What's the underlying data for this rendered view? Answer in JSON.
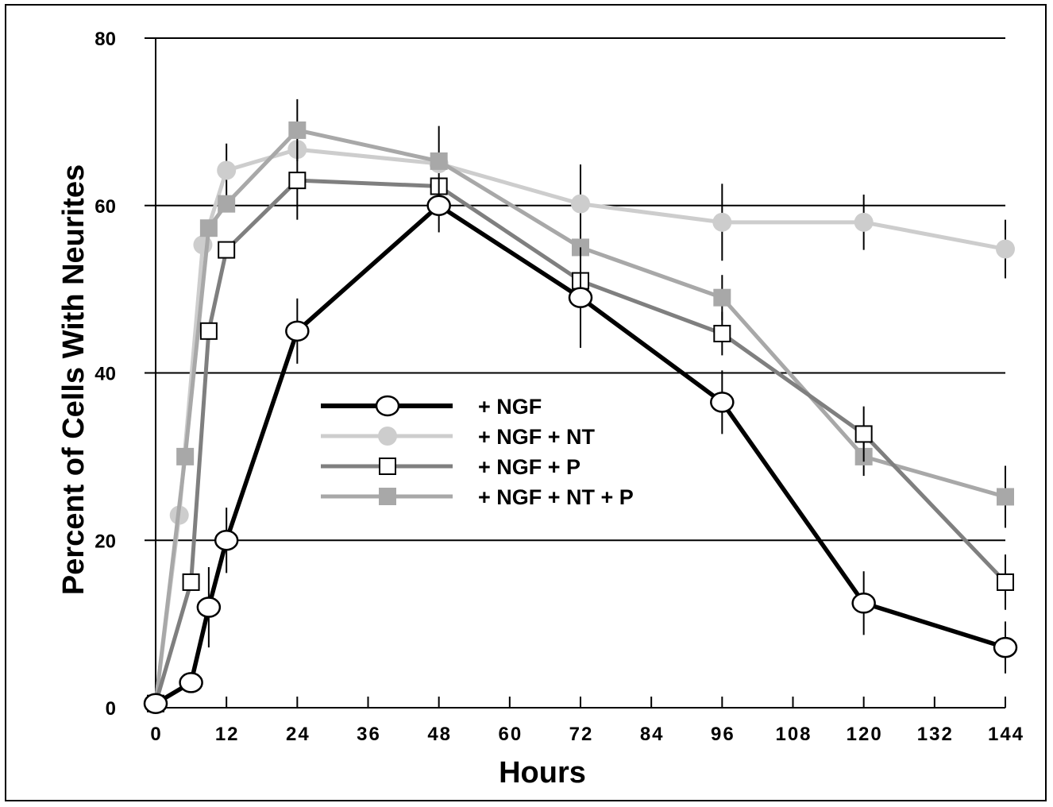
{
  "chart_data": {
    "type": "line",
    "xlabel": "Hours",
    "ylabel": "Percent of Cells With Neurites",
    "xlim": [
      0,
      144
    ],
    "ylim": [
      0,
      80
    ],
    "xticks": [
      "0",
      "12",
      "24",
      "36",
      "48",
      "60",
      "72",
      "84",
      "96",
      "108",
      "120",
      "132",
      "144"
    ],
    "yticks": [
      "0",
      "20",
      "40",
      "60",
      "80"
    ],
    "grid": "horizontal",
    "legend_position": "center",
    "series": [
      {
        "name": "+ NGF",
        "color": "#000000",
        "marker": "open-circle",
        "points": [
          {
            "x": 0,
            "y": 0.5
          },
          {
            "x": 6,
            "y": 3
          },
          {
            "x": 9,
            "y": 12,
            "err": 4.8
          },
          {
            "x": 12,
            "y": 20,
            "err": 3.9
          },
          {
            "x": 24,
            "y": 45,
            "err": 3.9
          },
          {
            "x": 48,
            "y": 60,
            "err": 3.2
          },
          {
            "x": 72,
            "y": 49,
            "err": 6
          },
          {
            "x": 96,
            "y": 36.5,
            "err": 3.8
          },
          {
            "x": 120,
            "y": 12.5,
            "err": 3.8
          },
          {
            "x": 144,
            "y": 7.2,
            "err": 3.1
          }
        ]
      },
      {
        "name": "+ NGF + NT",
        "color": "#cdcdcd",
        "marker": "filled-circle",
        "points": [
          {
            "x": 0,
            "y": 0.5
          },
          {
            "x": 4,
            "y": 23
          },
          {
            "x": 8,
            "y": 55.3
          },
          {
            "x": 12,
            "y": 64.2,
            "err": 3.2
          },
          {
            "x": 24,
            "y": 66.7
          },
          {
            "x": 48,
            "y": 65,
            "err": 4.5
          },
          {
            "x": 72,
            "y": 60.2,
            "err": 4.7
          },
          {
            "x": 96,
            "y": 58,
            "err": 4.6
          },
          {
            "x": 120,
            "y": 58,
            "err": 3.3
          },
          {
            "x": 144,
            "y": 54.8,
            "err": 3.5
          }
        ]
      },
      {
        "name": "+ NGF + P",
        "color": "#7f7f7f",
        "marker": "open-square",
        "points": [
          {
            "x": 0,
            "y": 0.5
          },
          {
            "x": 6,
            "y": 15
          },
          {
            "x": 9,
            "y": 45
          },
          {
            "x": 12,
            "y": 54.7
          },
          {
            "x": 24,
            "y": 63,
            "err": 4.7
          },
          {
            "x": 48,
            "y": 62.3
          },
          {
            "x": 72,
            "y": 51
          },
          {
            "x": 96,
            "y": 44.7,
            "err": 2.6
          },
          {
            "x": 120,
            "y": 32.7,
            "err": 3.3
          },
          {
            "x": 144,
            "y": 15,
            "err": 3.3
          }
        ]
      },
      {
        "name": "+ NGF + NT + P",
        "color": "#a8a8a8",
        "marker": "filled-square",
        "points": [
          {
            "x": 0,
            "y": 0.5
          },
          {
            "x": 5,
            "y": 30
          },
          {
            "x": 9,
            "y": 57.3
          },
          {
            "x": 12,
            "y": 60.2
          },
          {
            "x": 24,
            "y": 69,
            "err": 3.7
          },
          {
            "x": 48,
            "y": 65.3
          },
          {
            "x": 72,
            "y": 55
          },
          {
            "x": 96,
            "y": 49,
            "err": 2.7
          },
          {
            "x": 120,
            "y": 30,
            "err": 2.3
          },
          {
            "x": 144,
            "y": 25.2,
            "err": 3.7
          }
        ]
      }
    ]
  }
}
